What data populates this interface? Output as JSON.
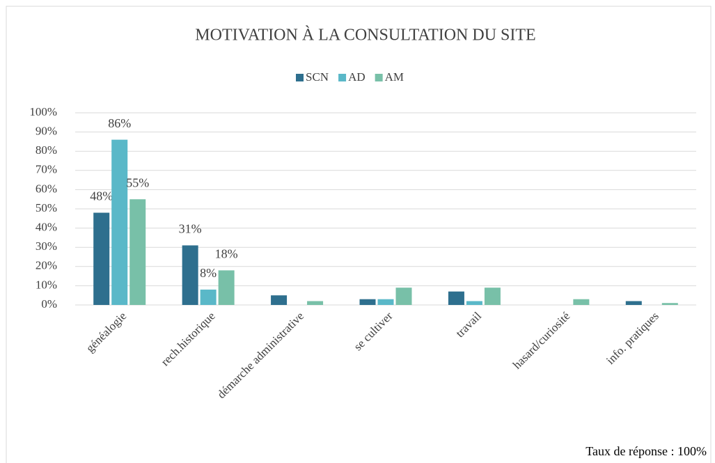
{
  "chart_data": {
    "type": "bar",
    "title": "MOTIVATION À LA CONSULTATION DU SITE",
    "categories": [
      "généalogie",
      "rech.historique",
      "démarche administrative",
      "se cultiver",
      "travail",
      "hasard/curiosité",
      "info. pratiques"
    ],
    "series": [
      {
        "name": "SCN",
        "color": "#2e6f8e",
        "values": [
          48,
          31,
          5,
          3,
          7,
          0,
          2
        ],
        "value_labels": [
          "48%",
          "31%",
          null,
          null,
          null,
          null,
          null
        ]
      },
      {
        "name": "AD",
        "color": "#5ab8c8",
        "values": [
          86,
          8,
          0,
          3,
          2,
          0,
          0
        ],
        "value_labels": [
          "86%",
          "8%",
          null,
          null,
          null,
          null,
          null
        ]
      },
      {
        "name": "AM",
        "color": "#78c0a8",
        "values": [
          55,
          18,
          2,
          9,
          9,
          3,
          1
        ],
        "value_labels": [
          "55%",
          "18%",
          null,
          null,
          null,
          null,
          null
        ]
      }
    ],
    "ylim": [
      0,
      100
    ],
    "yticks": [
      {
        "value": 0,
        "label": "0%"
      },
      {
        "value": 10,
        "label": "10%"
      },
      {
        "value": 20,
        "label": "20%"
      },
      {
        "value": 30,
        "label": "30%"
      },
      {
        "value": 40,
        "label": "40%"
      },
      {
        "value": 50,
        "label": "50%"
      },
      {
        "value": 60,
        "label": "60%"
      },
      {
        "value": 70,
        "label": "70%"
      },
      {
        "value": 80,
        "label": "80%"
      },
      {
        "value": 90,
        "label": "90%"
      },
      {
        "value": 100,
        "label": "100%"
      }
    ],
    "grid": true,
    "legend": "top",
    "annotation": "Taux de réponse : 100%"
  }
}
